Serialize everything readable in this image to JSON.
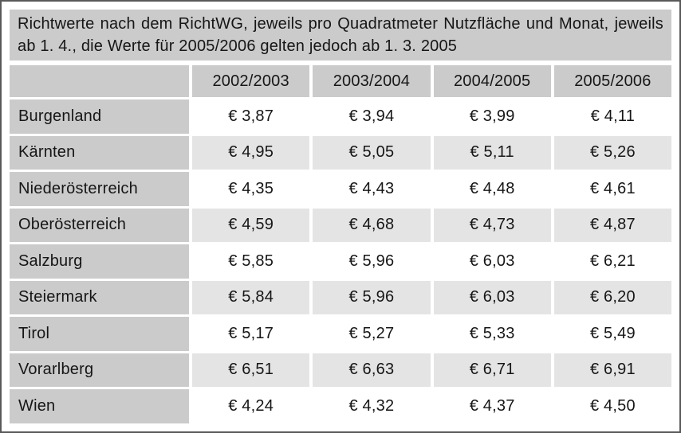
{
  "title": "Richtwerte nach dem RichtWG, jeweils pro Quadratmeter Nutzfläche und Monat, jeweils ab 1. 4., die Werte für 2005/2006 gelten jedoch ab 1. 3. 2005",
  "colors": {
    "panel_gray": "#cbcbcb",
    "row_alt_gray": "#e4e4e4",
    "row_white": "#ffffff",
    "frame_border": "#59595b",
    "text": "#161616"
  },
  "table": {
    "columns": [
      "2002/2003",
      "2003/2004",
      "2004/2005",
      "2005/2006"
    ],
    "rows": [
      {
        "label": "Burgenland",
        "values": [
          "€ 3,87",
          "€ 3,94",
          "€ 3,99",
          "€ 4,11"
        ]
      },
      {
        "label": "Kärnten",
        "values": [
          "€ 4,95",
          "€ 5,05",
          "€ 5,11",
          "€ 5,26"
        ]
      },
      {
        "label": "Niederösterreich",
        "values": [
          "€ 4,35",
          "€ 4,43",
          "€ 4,48",
          "€ 4,61"
        ]
      },
      {
        "label": "Oberösterreich",
        "values": [
          "€ 4,59",
          "€ 4,68",
          "€ 4,73",
          "€ 4,87"
        ]
      },
      {
        "label": "Salzburg",
        "values": [
          "€ 5,85",
          "€ 5,96",
          "€ 6,03",
          "€ 6,21"
        ]
      },
      {
        "label": "Steiermark",
        "values": [
          "€ 5,84",
          "€ 5,96",
          "€ 6,03",
          "€ 6,20"
        ]
      },
      {
        "label": "Tirol",
        "values": [
          "€ 5,17",
          "€ 5,27",
          "€ 5,33",
          "€ 5,49"
        ]
      },
      {
        "label": "Vorarlberg",
        "values": [
          "€ 6,51",
          "€ 6,63",
          "€ 6,71",
          "€ 6,91"
        ]
      },
      {
        "label": "Wien",
        "values": [
          "€ 4,24",
          "€ 4,32",
          "€ 4,37",
          "€ 4,50"
        ]
      }
    ]
  },
  "chart_data": {
    "type": "table",
    "title": "Richtwerte nach dem RichtWG, jeweils pro Quadratmeter Nutzfläche und Monat, jeweils ab 1. 4., die Werte für 2005/2006 gelten jedoch ab 1. 3. 2005",
    "categories": [
      "2002/2003",
      "2003/2004",
      "2004/2005",
      "2005/2006"
    ],
    "unit": "EUR pro Quadratmeter Nutzfläche und Monat",
    "number_format": "German decimal comma, prefixed with € ",
    "series": [
      {
        "name": "Burgenland",
        "values": [
          3.87,
          3.94,
          3.99,
          4.11
        ]
      },
      {
        "name": "Kärnten",
        "values": [
          4.95,
          5.05,
          5.11,
          5.26
        ]
      },
      {
        "name": "Niederösterreich",
        "values": [
          4.35,
          4.43,
          4.48,
          4.61
        ]
      },
      {
        "name": "Oberösterreich",
        "values": [
          4.59,
          4.68,
          4.73,
          4.87
        ]
      },
      {
        "name": "Salzburg",
        "values": [
          5.85,
          5.96,
          6.03,
          6.21
        ]
      },
      {
        "name": "Steiermark",
        "values": [
          5.84,
          5.96,
          6.03,
          6.2
        ]
      },
      {
        "name": "Tirol",
        "values": [
          5.17,
          5.27,
          5.33,
          5.49
        ]
      },
      {
        "name": "Vorarlberg",
        "values": [
          6.51,
          6.63,
          6.71,
          6.91
        ]
      },
      {
        "name": "Wien",
        "values": [
          4.24,
          4.32,
          4.37,
          4.5
        ]
      }
    ]
  }
}
